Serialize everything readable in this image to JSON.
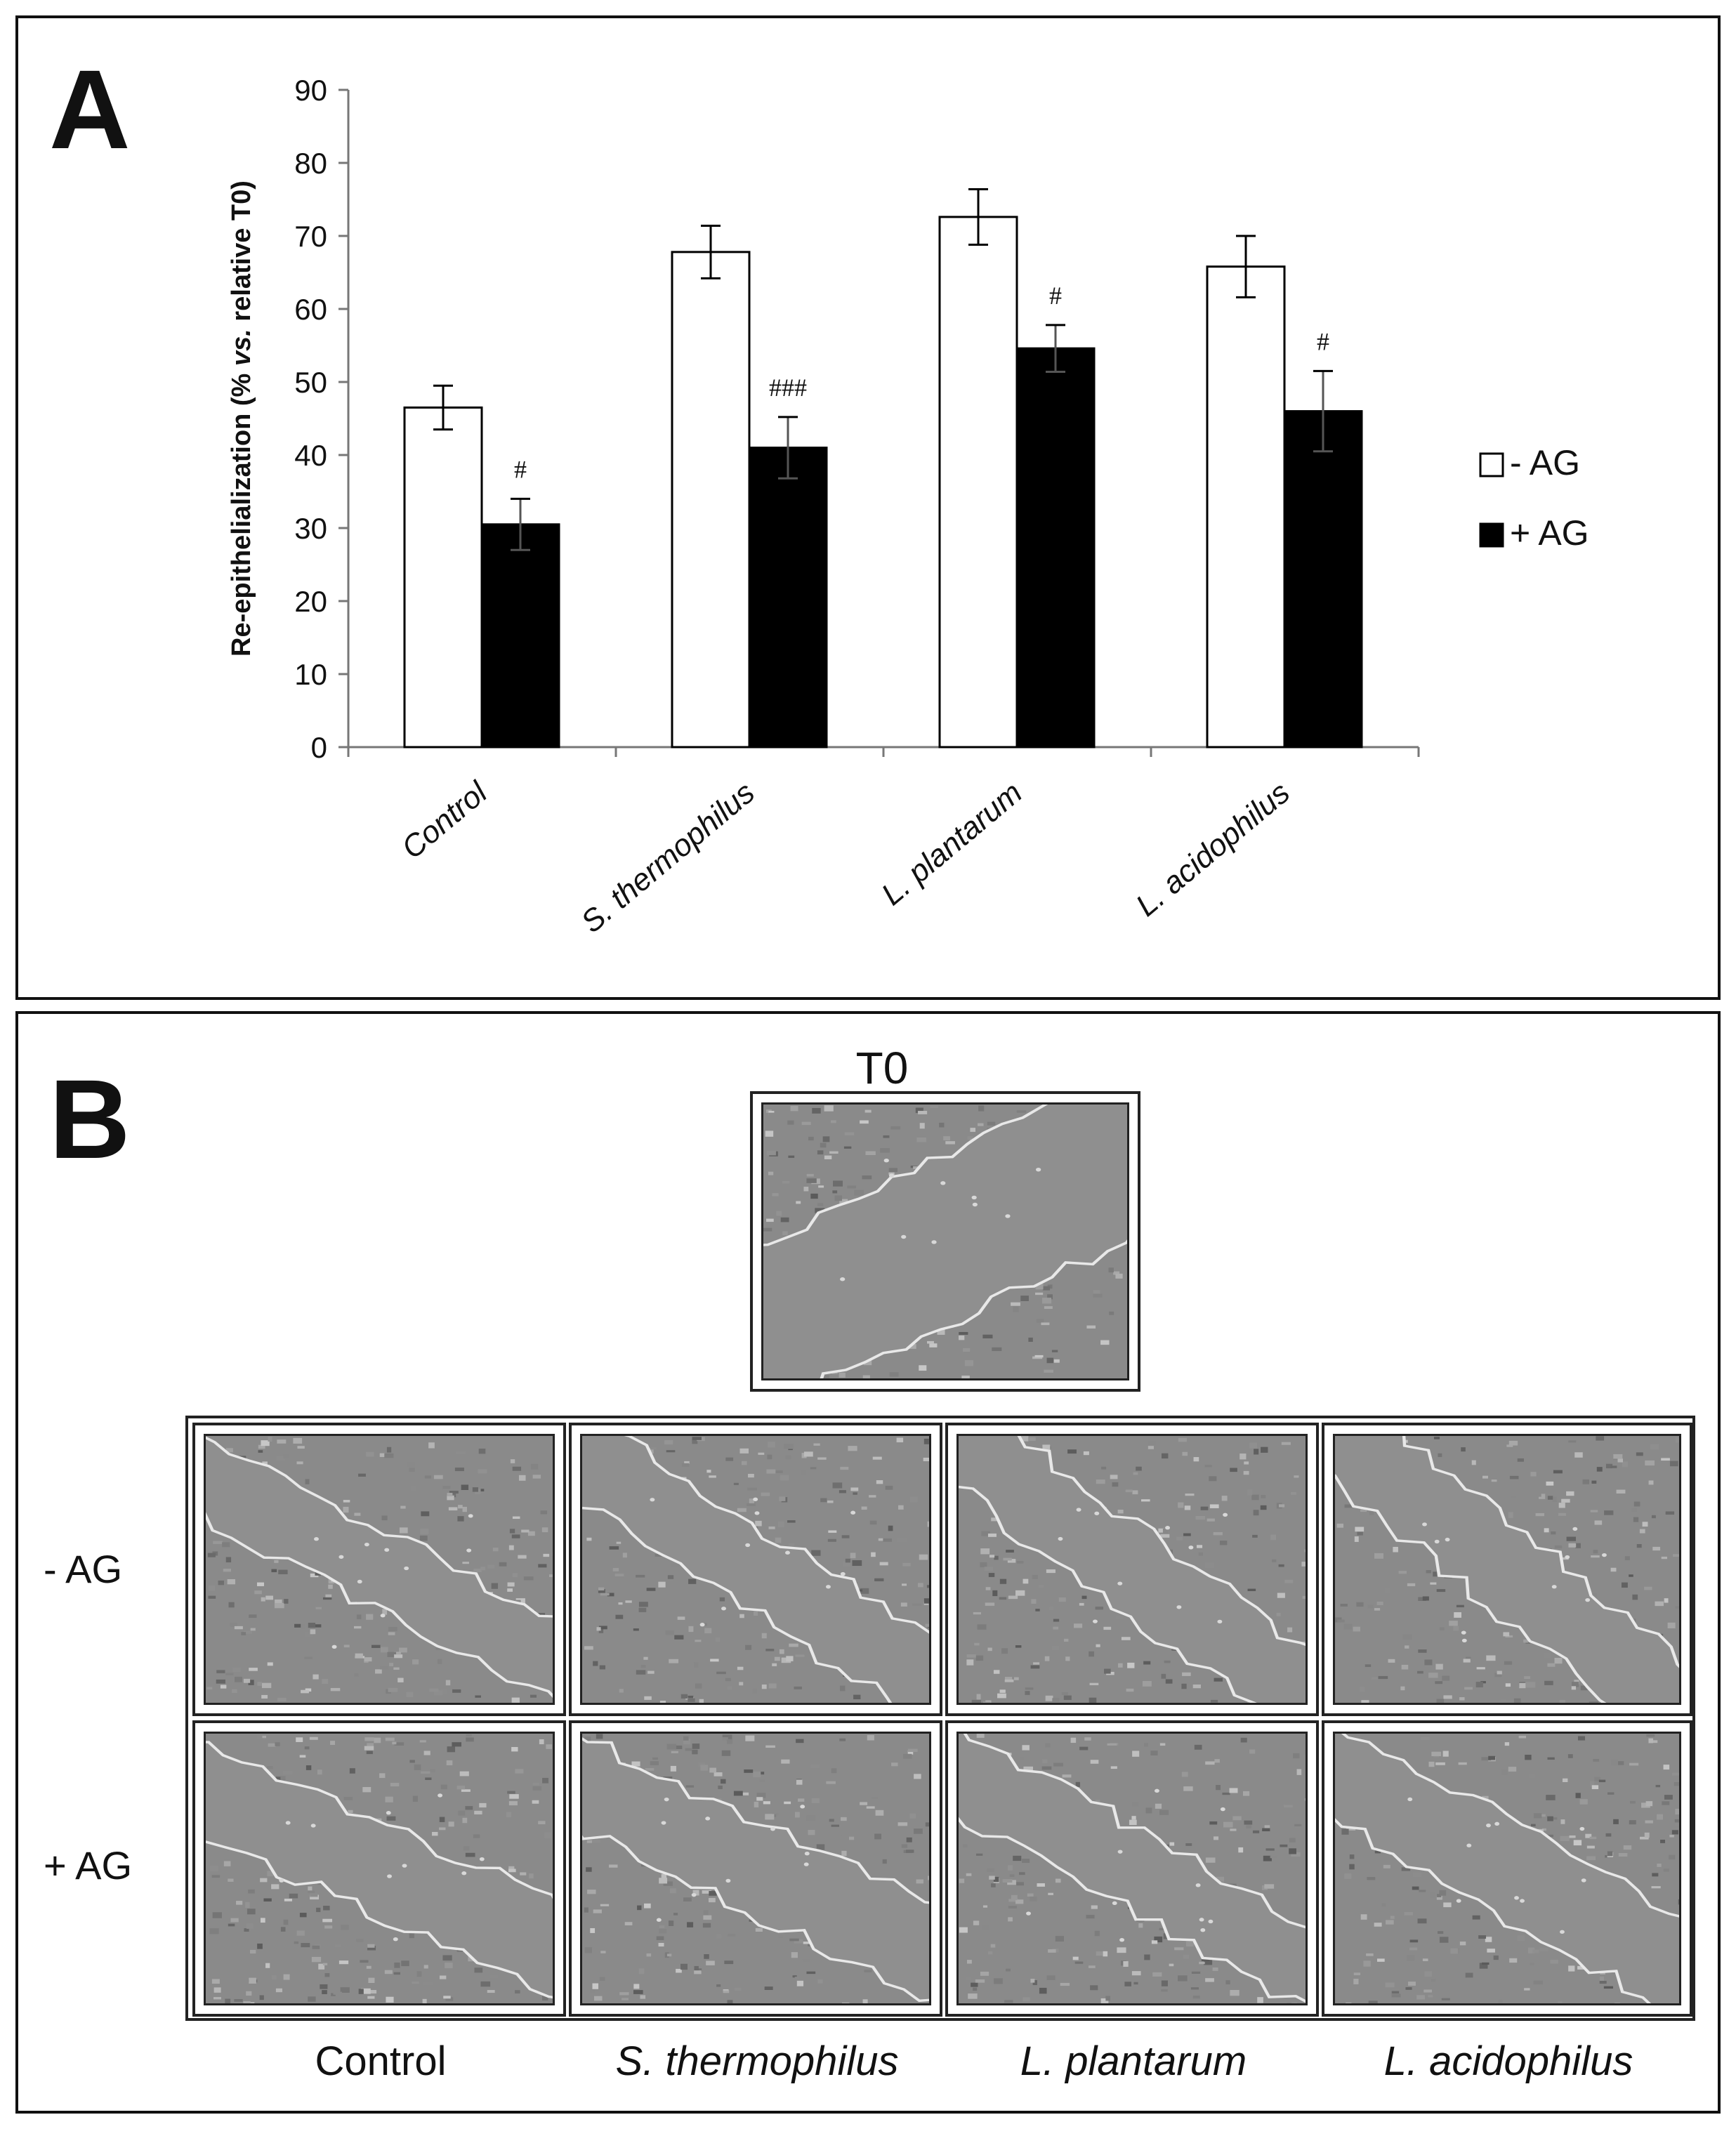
{
  "panel_a": {
    "letter": "A",
    "chart_data": {
      "type": "bar",
      "categories": [
        "Control",
        "S. thermophilus",
        "L. plantarum",
        "L. acidophilus"
      ],
      "series": [
        {
          "name": "- AG",
          "values": [
            46.5,
            67.8,
            72.6,
            65.8
          ],
          "errors": [
            3.0,
            3.6,
            3.8,
            4.2
          ],
          "color": "#ffffff"
        },
        {
          "name": "+ AG",
          "values": [
            30.5,
            41.0,
            54.6,
            46.0
          ],
          "errors": [
            3.5,
            4.2,
            3.2,
            5.5
          ],
          "color": "#000000"
        }
      ],
      "significance": [
        "#",
        "###",
        "#",
        "#"
      ],
      "ylabel_pre": "Re-epithelialization (% ",
      "ylabel_ital": "vs.",
      "ylabel_post": " relative T0)",
      "ylim": [
        0,
        90
      ],
      "yticks": [
        0,
        10,
        20,
        30,
        40,
        50,
        60,
        70,
        80,
        90
      ],
      "legend_placement": "right",
      "grid": false
    }
  },
  "panel_b": {
    "letter": "B",
    "t0_label": "T0",
    "row_labels": [
      "- AG",
      "+ AG"
    ],
    "column_labels": [
      "Control",
      "S. thermophilus",
      "L. plantarum",
      "L. acidophilus"
    ]
  }
}
